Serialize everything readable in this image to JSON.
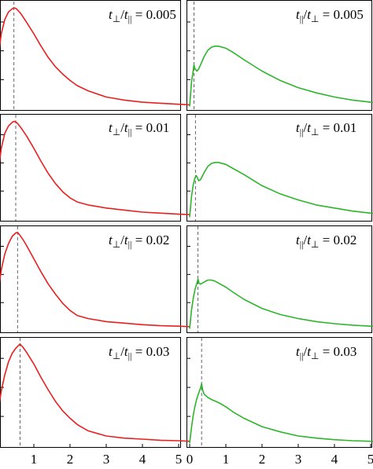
{
  "figure": {
    "colors": {
      "left_series": "#e8201f",
      "right_series": "#2db52b",
      "guide": "#555555",
      "frame": "#000000"
    },
    "x_tick_labels_left": [
      "1",
      "2",
      "3",
      "4",
      "5"
    ],
    "x_tick_labels_right": [
      "0",
      "1",
      "2",
      "3",
      "4",
      "5"
    ]
  },
  "chart_data": [
    {
      "type": "line",
      "label": "0.005",
      "label_prefix": "t⊥/t||",
      "xlim": [
        0,
        5.3
      ],
      "ylim": [
        0,
        1
      ],
      "vline_x": 0.45,
      "x": [
        0,
        0.1,
        0.2,
        0.3,
        0.4,
        0.45,
        0.5,
        0.55,
        0.65,
        0.8,
        1.0,
        1.2,
        1.4,
        1.6,
        1.8,
        2.0,
        2.2,
        2.5,
        3.0,
        3.5,
        4.0,
        4.5,
        5.0,
        5.3
      ],
      "y": [
        0.45,
        0.72,
        0.86,
        0.93,
        0.96,
        0.97,
        0.965,
        0.95,
        0.91,
        0.83,
        0.72,
        0.6,
        0.49,
        0.4,
        0.33,
        0.27,
        0.22,
        0.17,
        0.11,
        0.08,
        0.06,
        0.05,
        0.04,
        0.035
      ]
    },
    {
      "type": "line",
      "label": "0.005",
      "label_prefix": "t||/t⊥",
      "xlim": [
        0,
        5.3
      ],
      "ylim": [
        0,
        1
      ],
      "vline_x": 0.12,
      "x": [
        0,
        0.05,
        0.1,
        0.12,
        0.15,
        0.2,
        0.25,
        0.3,
        0.4,
        0.5,
        0.6,
        0.7,
        0.8,
        1.0,
        1.2,
        1.5,
        2.0,
        2.5,
        3.0,
        3.5,
        4.0,
        4.5,
        5.0,
        5.3
      ],
      "y": [
        0.02,
        0.25,
        0.37,
        0.42,
        0.38,
        0.36,
        0.38,
        0.42,
        0.5,
        0.56,
        0.59,
        0.6,
        0.6,
        0.58,
        0.54,
        0.47,
        0.36,
        0.27,
        0.2,
        0.15,
        0.11,
        0.08,
        0.06,
        0.05
      ]
    },
    {
      "type": "line",
      "label": "0.01",
      "label_prefix": "t⊥/t||",
      "xlim": [
        0,
        5.3
      ],
      "ylim": [
        0,
        1
      ],
      "vline_x": 0.5,
      "x": [
        0,
        0.1,
        0.2,
        0.3,
        0.4,
        0.45,
        0.5,
        0.55,
        0.65,
        0.8,
        1.0,
        1.2,
        1.4,
        1.6,
        1.8,
        2.0,
        2.2,
        2.5,
        3.0,
        3.5,
        4.0,
        4.5,
        5.0,
        5.3
      ],
      "y": [
        0.42,
        0.7,
        0.85,
        0.92,
        0.955,
        0.965,
        0.96,
        0.945,
        0.9,
        0.82,
        0.7,
        0.57,
        0.45,
        0.35,
        0.27,
        0.21,
        0.17,
        0.14,
        0.11,
        0.09,
        0.07,
        0.06,
        0.05,
        0.045
      ]
    },
    {
      "type": "line",
      "label": "0.01",
      "label_prefix": "t||/t⊥",
      "xlim": [
        0,
        5.3
      ],
      "ylim": [
        0,
        1
      ],
      "vline_x": 0.16,
      "x": [
        0,
        0.05,
        0.1,
        0.15,
        0.18,
        0.2,
        0.25,
        0.3,
        0.4,
        0.5,
        0.6,
        0.7,
        0.8,
        1.0,
        1.2,
        1.5,
        2.0,
        2.5,
        3.0,
        3.5,
        4.0,
        4.5,
        5.0,
        5.3
      ],
      "y": [
        0.02,
        0.22,
        0.34,
        0.41,
        0.43,
        0.42,
        0.38,
        0.39,
        0.46,
        0.52,
        0.55,
        0.56,
        0.56,
        0.54,
        0.5,
        0.44,
        0.33,
        0.25,
        0.19,
        0.14,
        0.11,
        0.08,
        0.06,
        0.05
      ]
    },
    {
      "type": "line",
      "label": "0.02",
      "label_prefix": "t⊥/t||",
      "xlim": [
        0,
        5.3
      ],
      "ylim": [
        0,
        1
      ],
      "vline_x": 0.55,
      "x": [
        0,
        0.1,
        0.2,
        0.3,
        0.4,
        0.5,
        0.55,
        0.6,
        0.7,
        0.8,
        1.0,
        1.2,
        1.4,
        1.6,
        1.8,
        2.0,
        2.2,
        2.5,
        3.0,
        3.5,
        4.0,
        4.5,
        5.0,
        5.3
      ],
      "y": [
        0.35,
        0.6,
        0.76,
        0.86,
        0.93,
        0.965,
        0.97,
        0.95,
        0.9,
        0.84,
        0.71,
        0.58,
        0.46,
        0.36,
        0.27,
        0.2,
        0.15,
        0.12,
        0.09,
        0.075,
        0.06,
        0.05,
        0.045,
        0.04
      ]
    },
    {
      "type": "line",
      "label": "0.02",
      "label_prefix": "t||/t⊥",
      "xlim": [
        0,
        5.3
      ],
      "ylim": [
        0,
        1
      ],
      "vline_x": 0.23,
      "x": [
        0,
        0.05,
        0.1,
        0.15,
        0.2,
        0.23,
        0.26,
        0.3,
        0.4,
        0.5,
        0.6,
        0.7,
        0.8,
        1.0,
        1.2,
        1.5,
        2.0,
        2.5,
        3.0,
        3.5,
        4.0,
        4.5,
        5.0,
        5.3
      ],
      "y": [
        0.02,
        0.2,
        0.32,
        0.41,
        0.47,
        0.51,
        0.47,
        0.46,
        0.48,
        0.5,
        0.5,
        0.49,
        0.47,
        0.43,
        0.38,
        0.31,
        0.22,
        0.16,
        0.12,
        0.09,
        0.07,
        0.055,
        0.045,
        0.04
      ]
    },
    {
      "type": "line",
      "label": "0.03",
      "label_prefix": "t⊥/t||",
      "xlim": [
        0,
        5.3
      ],
      "ylim": [
        0,
        1
      ],
      "vline_x": 0.62,
      "x": [
        0,
        0.1,
        0.2,
        0.3,
        0.4,
        0.5,
        0.6,
        0.62,
        0.7,
        0.8,
        1.0,
        1.2,
        1.4,
        1.6,
        1.8,
        2.0,
        2.2,
        2.5,
        3.0,
        3.5,
        4.0,
        4.5,
        5.0,
        5.3
      ],
      "y": [
        0.3,
        0.52,
        0.68,
        0.8,
        0.88,
        0.93,
        0.965,
        0.97,
        0.94,
        0.89,
        0.78,
        0.65,
        0.53,
        0.42,
        0.33,
        0.26,
        0.2,
        0.14,
        0.09,
        0.07,
        0.06,
        0.05,
        0.045,
        0.04
      ]
    },
    {
      "type": "line",
      "label": "0.03",
      "label_prefix": "t||/t⊥",
      "xlim": [
        0,
        5.3
      ],
      "ylim": [
        0,
        1
      ],
      "vline_x": 0.33,
      "x": [
        0,
        0.05,
        0.1,
        0.15,
        0.2,
        0.25,
        0.3,
        0.33,
        0.36,
        0.4,
        0.5,
        0.6,
        0.8,
        1.0,
        1.2,
        1.5,
        2.0,
        2.5,
        3.0,
        3.5,
        4.0,
        4.5,
        5.0,
        5.3
      ],
      "y": [
        0.02,
        0.17,
        0.29,
        0.38,
        0.45,
        0.5,
        0.55,
        0.59,
        0.53,
        0.49,
        0.46,
        0.44,
        0.41,
        0.37,
        0.32,
        0.26,
        0.18,
        0.13,
        0.09,
        0.07,
        0.055,
        0.045,
        0.04,
        0.035
      ]
    }
  ]
}
